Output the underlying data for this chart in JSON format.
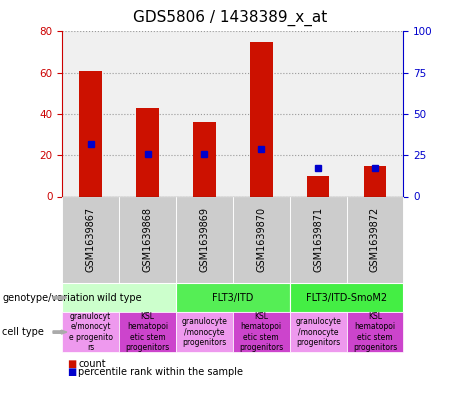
{
  "title": "GDS5806 / 1438389_x_at",
  "samples": [
    "GSM1639867",
    "GSM1639868",
    "GSM1639869",
    "GSM1639870",
    "GSM1639871",
    "GSM1639872"
  ],
  "count_values": [
    61,
    43,
    36,
    75,
    10,
    15
  ],
  "percentile_values": [
    32,
    26,
    26,
    29,
    17,
    17
  ],
  "ylim_left": [
    0,
    80
  ],
  "ylim_right": [
    0,
    100
  ],
  "yticks_left": [
    0,
    20,
    40,
    60,
    80
  ],
  "yticks_right": [
    0,
    25,
    50,
    75,
    100
  ],
  "bar_color": "#cc1100",
  "marker_color": "#0000cc",
  "genotype_groups": [
    {
      "label": "wild type",
      "start": 0,
      "end": 2,
      "color": "#ccffcc"
    },
    {
      "label": "FLT3/ITD",
      "start": 2,
      "end": 4,
      "color": "#44ee44"
    },
    {
      "label": "FLT3/ITD-SmoM2",
      "start": 4,
      "end": 6,
      "color": "#44ee44"
    }
  ],
  "cell_types": [
    {
      "label": "granulocyte\ne/monocyt\ne progenito\nrs",
      "color": "#ee99ee"
    },
    {
      "label": "KSL\nhematopoi\netic stem\nprogenitors",
      "color": "#cc44cc"
    },
    {
      "label": "granulocyte\n/monocyte\nprogenitors",
      "color": "#ee99ee"
    },
    {
      "label": "KSL\nhematopoi\netic stem\nprogenitors",
      "color": "#cc44cc"
    },
    {
      "label": "granulocyte\n/monocyte\nprogenitors",
      "color": "#ee99ee"
    },
    {
      "label": "KSL\nhematopoi\netic stem\nprogenitors",
      "color": "#cc44cc"
    }
  ],
  "gsm_bg": "#cccccc",
  "plot_bg": "#f0f0f0",
  "grid_color": "#999999",
  "background_color": "#ffffff",
  "left_axis_color": "#cc0000",
  "right_axis_color": "#0000cc",
  "title_fontsize": 11,
  "tick_fontsize": 7.5,
  "anno_fontsize": 7,
  "cell_fontsize": 5.5,
  "bar_width": 0.4
}
